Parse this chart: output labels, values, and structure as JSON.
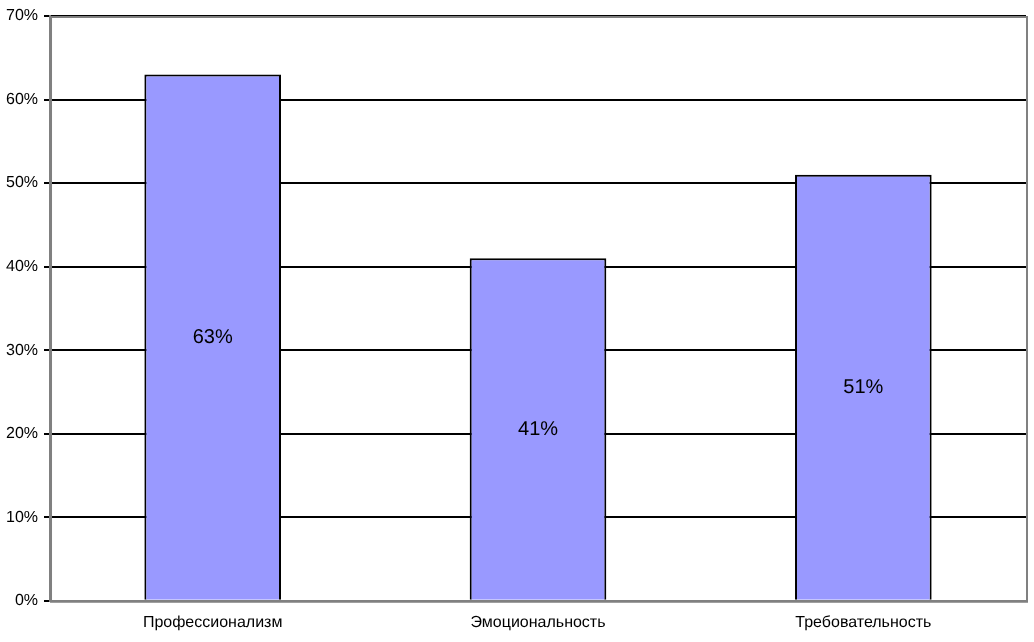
{
  "chart_data": {
    "type": "bar",
    "categories": [
      "Профессионализм",
      "Эмоциональность",
      "Требовательность"
    ],
    "values": [
      63,
      41,
      51
    ],
    "color": "#9999ff",
    "value_labels": [
      "63%",
      "41%",
      "51%"
    ],
    "ylim": [
      0,
      70
    ],
    "yticks": [
      {
        "value": 0,
        "label": "0%"
      },
      {
        "value": 10,
        "label": "10%"
      },
      {
        "value": 20,
        "label": "20%"
      },
      {
        "value": 30,
        "label": "30%"
      },
      {
        "value": 40,
        "label": "40%"
      },
      {
        "value": 50,
        "label": "50%"
      },
      {
        "value": 60,
        "label": "60%"
      },
      {
        "value": 70,
        "label": "70%"
      }
    ],
    "grid": "y"
  }
}
